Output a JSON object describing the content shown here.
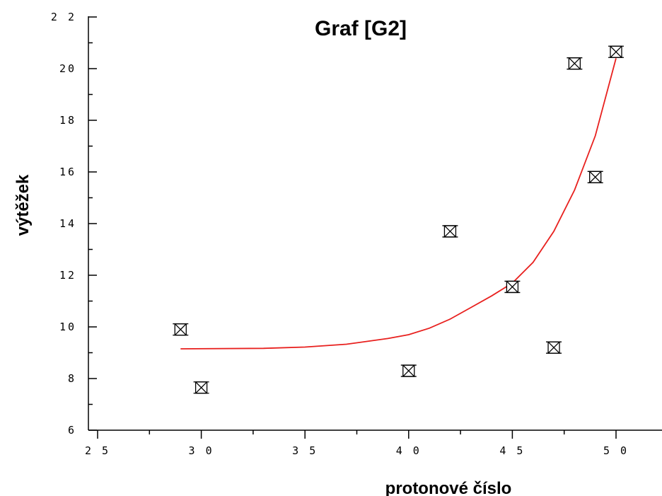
{
  "chart_data": {
    "type": "scatter",
    "title": "Graf [G2]",
    "xlabel": "protonové číslo",
    "ylabel": "výtěžek",
    "xlim": [
      25,
      52
    ],
    "ylim": [
      6,
      22
    ],
    "x_ticks": [
      25,
      30,
      35,
      40,
      45,
      50
    ],
    "x_tick_labels": [
      "2 5",
      "3 0",
      "3 5",
      "4 0",
      "4 5",
      "5 0"
    ],
    "y_ticks": [
      6,
      8,
      10,
      12,
      14,
      16,
      18,
      20,
      22
    ],
    "y_tick_labels": [
      "6",
      "8",
      "10",
      "12",
      "14",
      "16",
      "18",
      "20",
      "2 2"
    ],
    "grid": false,
    "series": [
      {
        "marker": "boxed-x",
        "color": "#000000",
        "points": [
          {
            "x": 29,
            "y": 9.9
          },
          {
            "x": 30,
            "y": 7.65
          },
          {
            "x": 40,
            "y": 8.3
          },
          {
            "x": 42,
            "y": 13.7
          },
          {
            "x": 45,
            "y": 11.55
          },
          {
            "x": 47,
            "y": 9.2
          },
          {
            "x": 48,
            "y": 20.2
          },
          {
            "x": 49,
            "y": 15.8
          },
          {
            "x": 50,
            "y": 20.65
          }
        ]
      },
      {
        "type": "line",
        "color": "#e8201e",
        "points": [
          {
            "x": 29,
            "y": 9.15
          },
          {
            "x": 33,
            "y": 9.17
          },
          {
            "x": 35,
            "y": 9.22
          },
          {
            "x": 37,
            "y": 9.33
          },
          {
            "x": 39,
            "y": 9.55
          },
          {
            "x": 40,
            "y": 9.7
          },
          {
            "x": 41,
            "y": 9.95
          },
          {
            "x": 42,
            "y": 10.3
          },
          {
            "x": 43,
            "y": 10.75
          },
          {
            "x": 44,
            "y": 11.2
          },
          {
            "x": 45,
            "y": 11.7
          },
          {
            "x": 46,
            "y": 12.5
          },
          {
            "x": 47,
            "y": 13.7
          },
          {
            "x": 48,
            "y": 15.3
          },
          {
            "x": 49,
            "y": 17.4
          },
          {
            "x": 50,
            "y": 20.4
          }
        ]
      }
    ]
  }
}
